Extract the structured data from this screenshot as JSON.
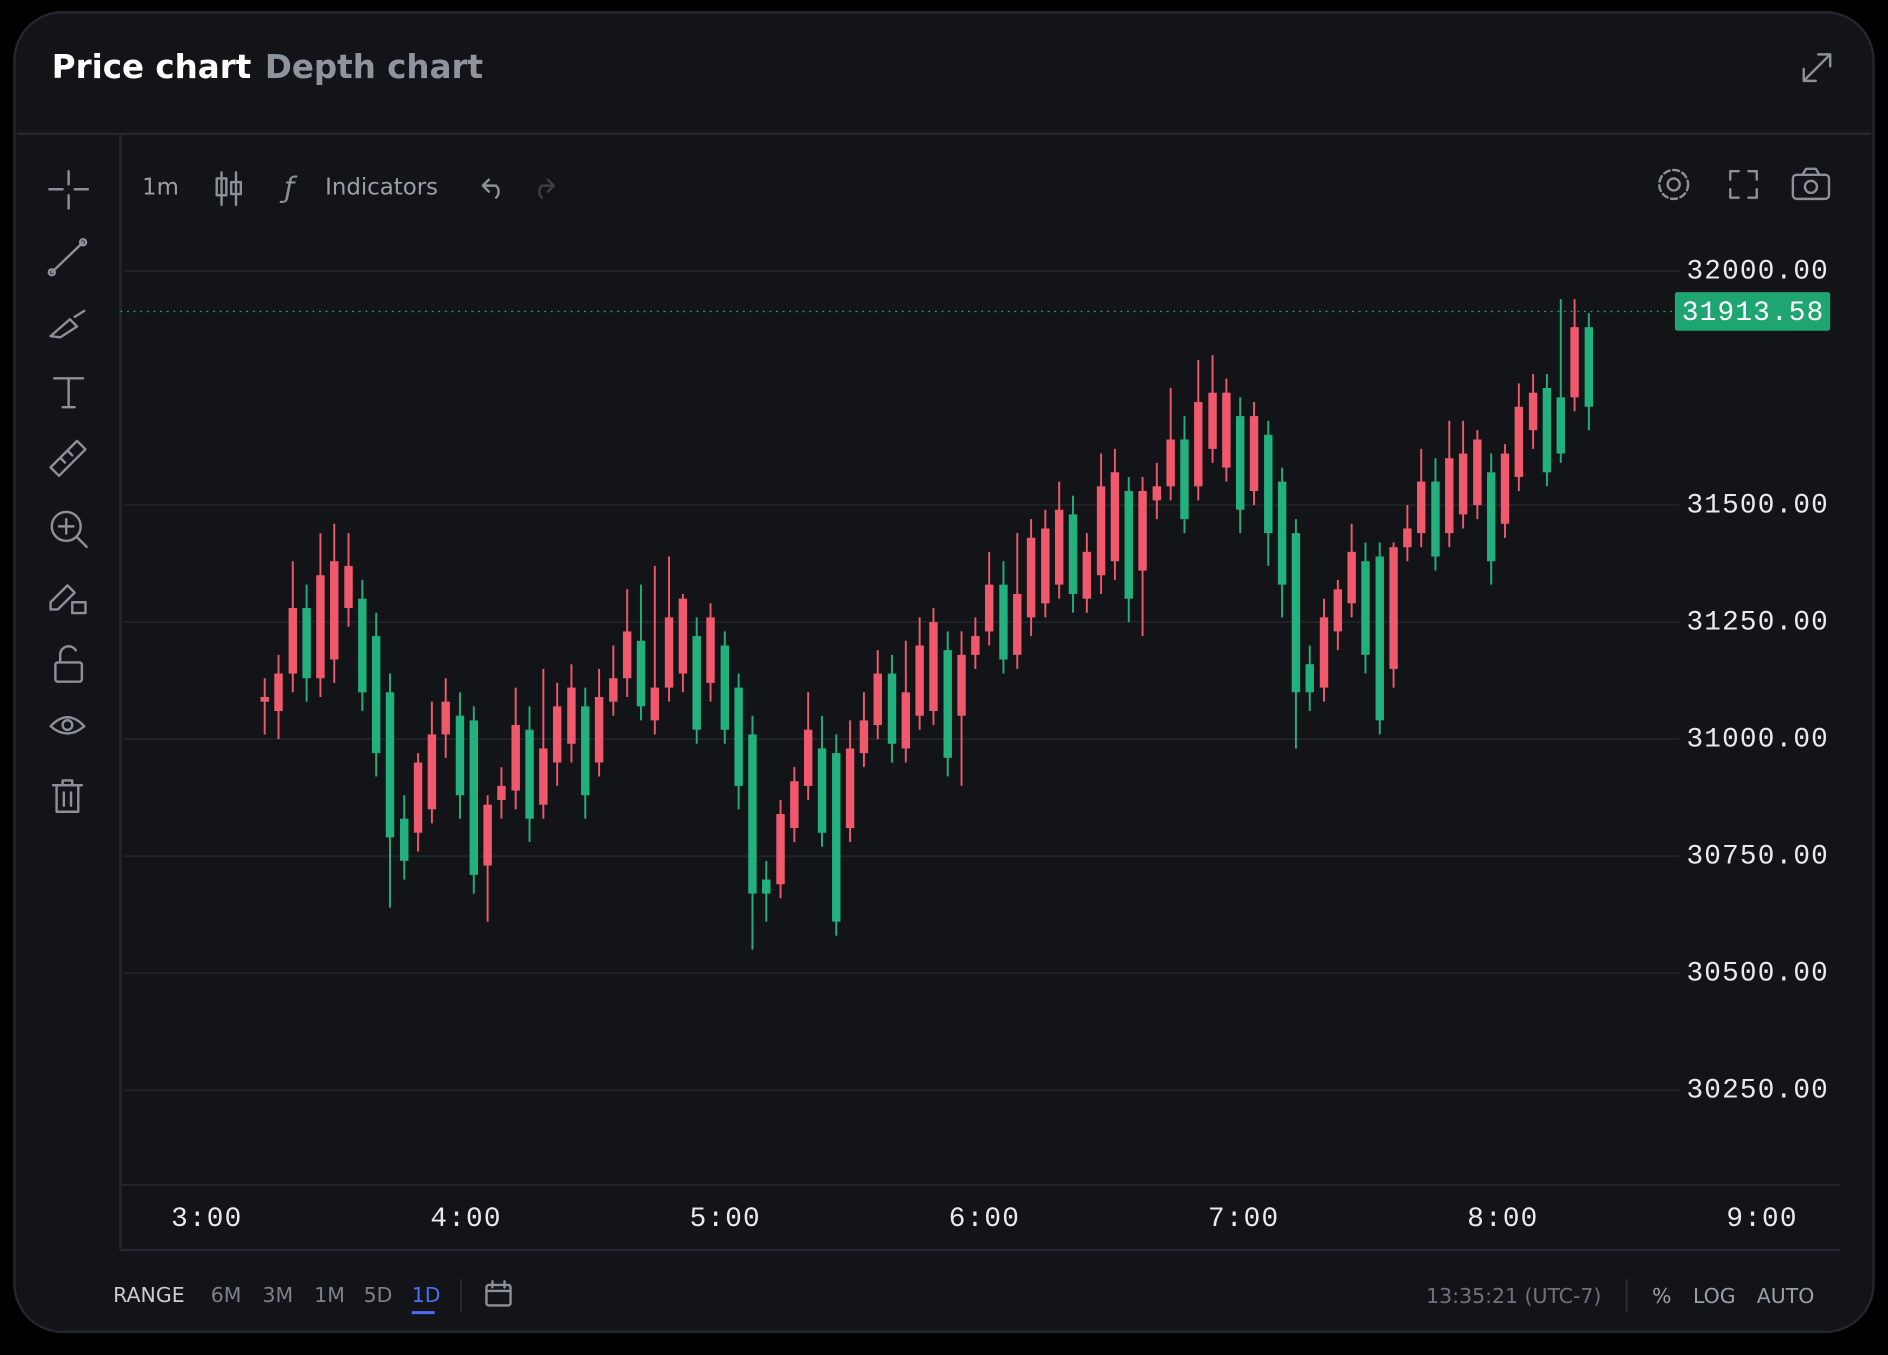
{
  "header": {
    "tabs": [
      "Price chart",
      "Depth chart"
    ]
  },
  "toolbar": {
    "interval": "1m",
    "indicators": "Indicators"
  },
  "chart_data": {
    "type": "candlestick",
    "x": [
      193.4,
      196.6,
      199.9,
      203.1,
      206.3,
      209.5,
      212.8,
      216.0,
      219.2,
      222.4,
      225.7,
      228.9,
      232.1,
      235.3,
      238.6,
      241.8,
      245.0,
      248.2,
      251.5,
      254.7,
      257.9,
      261.1,
      264.4,
      267.6,
      270.8,
      274.1,
      277.3,
      280.5,
      283.7,
      287.0,
      290.2,
      293.4,
      296.6,
      299.9,
      303.1,
      306.3,
      309.5,
      312.8,
      316.0,
      319.2,
      322.4,
      325.7,
      328.9,
      332.1,
      335.3,
      338.6,
      341.8,
      345.0,
      348.2,
      351.5,
      354.7,
      357.9,
      361.1,
      364.4,
      367.6,
      370.8,
      374.1,
      377.3,
      380.5,
      383.7,
      387.0,
      390.2,
      393.4,
      396.6,
      399.9,
      403.1,
      406.3,
      409.5,
      412.8,
      416.0,
      419.2,
      422.4,
      425.7,
      428.9,
      432.1,
      435.3,
      438.6,
      441.8,
      445.0,
      448.2,
      451.5,
      454.7,
      457.9,
      461.1,
      464.4,
      467.6,
      470.8,
      474.1,
      477.3,
      480.5,
      483.7,
      487.0,
      490.2,
      493.4,
      496.6,
      499.9
    ],
    "open": [
      31080,
      31060,
      31140,
      31280,
      31130,
      31170,
      31280,
      31300,
      31220,
      31100,
      30830,
      30800,
      30850,
      31010,
      31050,
      31040,
      30730,
      30870,
      30890,
      31020,
      30860,
      30950,
      30990,
      31070,
      30950,
      31080,
      31130,
      31210,
      31040,
      31110,
      31140,
      31220,
      31120,
      31200,
      31110,
      31010,
      30700,
      30690,
      30810,
      30900,
      30980,
      30970,
      30810,
      30970,
      31030,
      31140,
      30980,
      31050,
      31060,
      31190,
      31050,
      31180,
      31230,
      31330,
      31180,
      31260,
      31290,
      31330,
      31480,
      31300,
      31350,
      31380,
      31530,
      31360,
      31510,
      31540,
      31640,
      31540,
      31620,
      31580,
      31690,
      31530,
      31650,
      31550,
      31440,
      31160,
      31110,
      31230,
      31290,
      31380,
      31390,
      31150,
      31410,
      31440,
      31550,
      31440,
      31480,
      31500,
      31570,
      31460,
      31560,
      31660,
      31750,
      31730,
      31730,
      31880
    ],
    "high": [
      31130,
      31180,
      31380,
      31330,
      31440,
      31460,
      31440,
      31340,
      31270,
      31140,
      30880,
      30970,
      31080,
      31130,
      31100,
      31070,
      30880,
      30940,
      31110,
      31070,
      31150,
      31120,
      31160,
      31110,
      31150,
      31200,
      31320,
      31330,
      31370,
      31390,
      31310,
      31260,
      31290,
      31230,
      31140,
      31050,
      30740,
      30870,
      30940,
      31100,
      31050,
      31010,
      31040,
      31100,
      31190,
      31180,
      31210,
      31260,
      31280,
      31230,
      31230,
      31260,
      31400,
      31380,
      31440,
      31470,
      31490,
      31550,
      31520,
      31440,
      31610,
      31620,
      31560,
      31560,
      31590,
      31750,
      31690,
      31810,
      31820,
      31770,
      31730,
      31720,
      31680,
      31580,
      31470,
      31200,
      31300,
      31340,
      31460,
      31420,
      31420,
      31420,
      31500,
      31620,
      31600,
      31680,
      31680,
      31660,
      31610,
      31630,
      31760,
      31780,
      31780,
      31940,
      31940,
      31910
    ],
    "low": [
      31010,
      31000,
      31100,
      31080,
      31090,
      31120,
      31240,
      31060,
      30920,
      30640,
      30700,
      30760,
      30820,
      30960,
      30830,
      30670,
      30610,
      30830,
      30850,
      30780,
      30830,
      30900,
      30950,
      30830,
      30920,
      31050,
      31090,
      31040,
      31010,
      31080,
      31100,
      30990,
      31080,
      30990,
      30850,
      30550,
      30610,
      30660,
      30780,
      30870,
      30770,
      30580,
      30780,
      30940,
      31000,
      30950,
      30950,
      31020,
      31030,
      30920,
      30900,
      31150,
      31200,
      31140,
      31150,
      31220,
      31260,
      31300,
      31270,
      31270,
      31310,
      31340,
      31250,
      31220,
      31470,
      31510,
      31440,
      31510,
      31590,
      31550,
      31440,
      31500,
      31370,
      31260,
      30980,
      31060,
      31080,
      31190,
      31260,
      31140,
      31010,
      31110,
      31380,
      31410,
      31360,
      31410,
      31450,
      31470,
      31330,
      31430,
      31530,
      31620,
      31540,
      31590,
      31700,
      31660
    ],
    "close": [
      31090,
      31140,
      31280,
      31130,
      31350,
      31380,
      31370,
      31100,
      30970,
      30790,
      30740,
      30950,
      31010,
      31080,
      30880,
      30710,
      30860,
      30900,
      31030,
      30830,
      30980,
      31070,
      31110,
      30880,
      31090,
      31130,
      31230,
      31070,
      31110,
      31260,
      31300,
      31020,
      31260,
      31020,
      30900,
      30670,
      30670,
      30840,
      30910,
      31020,
      30800,
      30610,
      30980,
      31040,
      31140,
      30990,
      31100,
      31200,
      31250,
      30960,
      31180,
      31220,
      31330,
      31170,
      31310,
      31430,
      31450,
      31490,
      31310,
      31400,
      31540,
      31570,
      31300,
      31530,
      31540,
      31640,
      31470,
      31720,
      31740,
      31740,
      31490,
      31690,
      31440,
      31330,
      31100,
      31100,
      31260,
      31320,
      31400,
      31180,
      31040,
      31410,
      31450,
      31550,
      31390,
      31600,
      31610,
      31640,
      31380,
      31610,
      31710,
      31740,
      31570,
      31610,
      31880,
      31710
    ],
    "up_color": "#f0596c",
    "down_color": "#22b07d",
    "xlim": [
      160,
      558
    ],
    "xticks": [
      {
        "value": 180,
        "label": "3:00"
      },
      {
        "value": 240,
        "label": "4:00"
      },
      {
        "value": 300,
        "label": "5:00"
      },
      {
        "value": 360,
        "label": "6:00"
      },
      {
        "value": 420,
        "label": "7:00"
      },
      {
        "value": 480,
        "label": "8:00"
      },
      {
        "value": 540,
        "label": "9:00"
      }
    ],
    "ylim": [
      30050,
      32100
    ],
    "yticks": [
      {
        "value": 30250,
        "label": "30250.00"
      },
      {
        "value": 30500,
        "label": "30500.00"
      },
      {
        "value": 30750,
        "label": "30750.00"
      },
      {
        "value": 31000,
        "label": "31000.00"
      },
      {
        "value": 31250,
        "label": "31250.00"
      },
      {
        "value": 31500,
        "label": "31500.00"
      },
      {
        "value": 32000,
        "label": "32000.00"
      }
    ],
    "grid": true,
    "last_price": 31913.58,
    "last_price_color": "#1fa571"
  },
  "footer": {
    "range_label": "RANGE",
    "ranges": [
      "6M",
      "3M",
      "1M",
      "5D",
      "1D"
    ],
    "active_range_index": 4,
    "clock": "13:35:21 (UTC-7)",
    "options": [
      "%",
      "LOG",
      "AUTO"
    ]
  }
}
